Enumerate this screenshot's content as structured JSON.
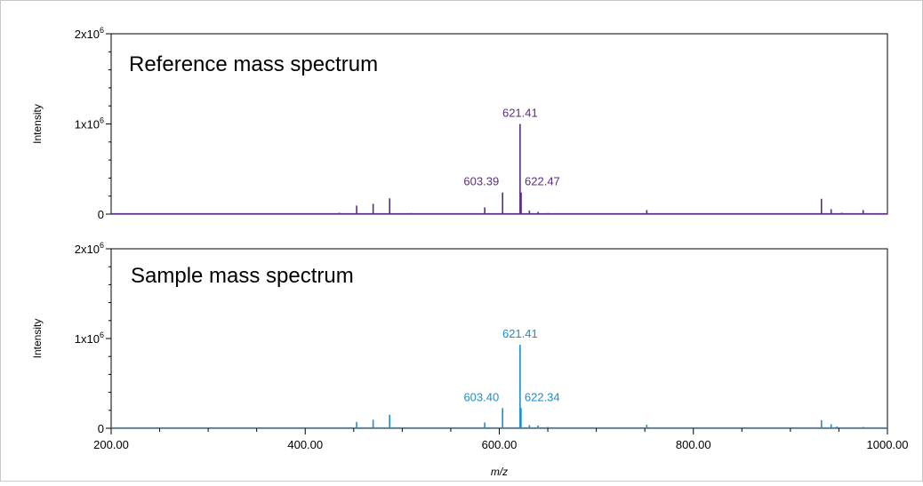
{
  "chart_data": [
    {
      "type": "line",
      "title": "Reference mass spectrum",
      "ylabel": "Intensity",
      "xlabel": "",
      "color": "#5b2c83",
      "xlim": [
        200,
        1000
      ],
      "ylim": [
        0,
        2000000
      ],
      "y_ticks": [
        {
          "value": 0,
          "base": "0",
          "exp": ""
        },
        {
          "value": 1000000,
          "base": "1x10",
          "exp": "6"
        },
        {
          "value": 2000000,
          "base": "2x10",
          "exp": "6"
        }
      ],
      "peaks": [
        {
          "x": 435.0,
          "y": 15000
        },
        {
          "x": 453.0,
          "y": 95000
        },
        {
          "x": 470.0,
          "y": 115000
        },
        {
          "x": 487.0,
          "y": 175000
        },
        {
          "x": 509.0,
          "y": 12000
        },
        {
          "x": 585.0,
          "y": 75000
        },
        {
          "x": 603.39,
          "y": 240000
        },
        {
          "x": 621.41,
          "y": 1000000
        },
        {
          "x": 622.47,
          "y": 240000
        },
        {
          "x": 631.0,
          "y": 40000
        },
        {
          "x": 640.0,
          "y": 25000
        },
        {
          "x": 650.0,
          "y": 12000
        },
        {
          "x": 752.0,
          "y": 45000
        },
        {
          "x": 932.0,
          "y": 170000
        },
        {
          "x": 942.0,
          "y": 55000
        },
        {
          "x": 953.0,
          "y": 15000
        },
        {
          "x": 975.0,
          "y": 45000
        }
      ],
      "annotations": [
        {
          "x": 621.41,
          "y": 1000000,
          "text": "621.41",
          "anchor": "middle"
        },
        {
          "x": 603.39,
          "y": 240000,
          "text": "603.39",
          "anchor": "end"
        },
        {
          "x": 622.47,
          "y": 240000,
          "text": "622.47",
          "anchor": "start"
        }
      ]
    },
    {
      "type": "line",
      "title": "Sample mass spectrum",
      "ylabel": "Intensity",
      "xlabel": "m/z",
      "color": "#1a8fd0",
      "xlim": [
        200,
        1000
      ],
      "ylim": [
        0,
        2000000
      ],
      "x_ticks": [
        "200.00",
        "400.00",
        "600.00",
        "800.00",
        "1000.00"
      ],
      "x_tick_values": [
        200,
        400,
        600,
        800,
        1000
      ],
      "y_ticks": [
        {
          "value": 0,
          "base": "0",
          "exp": ""
        },
        {
          "value": 1000000,
          "base": "1x10",
          "exp": "6"
        },
        {
          "value": 2000000,
          "base": "2x10",
          "exp": "6"
        }
      ],
      "peaks": [
        {
          "x": 264.0,
          "y": 10000
        },
        {
          "x": 453.0,
          "y": 70000
        },
        {
          "x": 470.0,
          "y": 95000
        },
        {
          "x": 487.0,
          "y": 150000
        },
        {
          "x": 585.0,
          "y": 65000
        },
        {
          "x": 603.4,
          "y": 225000
        },
        {
          "x": 621.41,
          "y": 930000
        },
        {
          "x": 622.34,
          "y": 225000
        },
        {
          "x": 631.0,
          "y": 35000
        },
        {
          "x": 640.0,
          "y": 30000
        },
        {
          "x": 650.0,
          "y": 15000
        },
        {
          "x": 752.0,
          "y": 40000
        },
        {
          "x": 932.0,
          "y": 90000
        },
        {
          "x": 942.0,
          "y": 45000
        },
        {
          "x": 948.0,
          "y": 20000
        },
        {
          "x": 975.0,
          "y": 15000
        }
      ],
      "annotations": [
        {
          "x": 621.41,
          "y": 930000,
          "text": "621.41",
          "anchor": "middle"
        },
        {
          "x": 603.4,
          "y": 225000,
          "text": "603.40",
          "anchor": "end"
        },
        {
          "x": 622.34,
          "y": 225000,
          "text": "622.34",
          "anchor": "start"
        }
      ]
    }
  ]
}
